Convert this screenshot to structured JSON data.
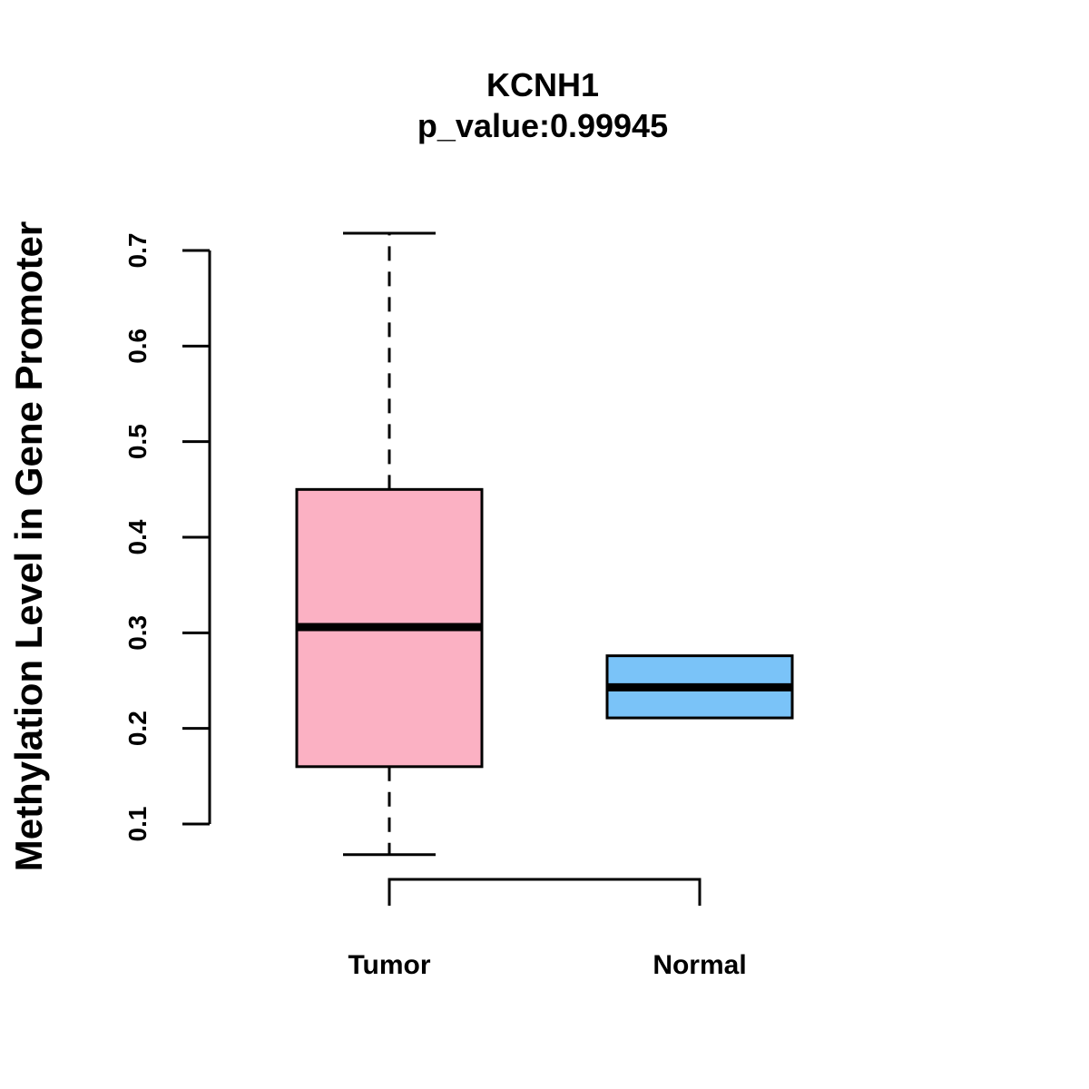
{
  "chart_data": {
    "type": "box",
    "title": "KCNH1",
    "subtitle": "p_value:0.99945",
    "ylabel": "Methylation Level in Gene Promoter",
    "xlabel": "",
    "ylim": [
      0.1,
      0.7
    ],
    "yticks": [
      "0.1",
      "0.2",
      "0.3",
      "0.4",
      "0.5",
      "0.6",
      "0.7"
    ],
    "grid": false,
    "categories": [
      "Tumor",
      "Normal"
    ],
    "boxes": [
      {
        "category": "Tumor",
        "min": 0.068,
        "q1": 0.16,
        "median": 0.306,
        "q3": 0.45,
        "max": 0.718,
        "color": "#FBB1C3"
      },
      {
        "category": "Normal",
        "min": 0.211,
        "q1": 0.211,
        "median": 0.243,
        "q3": 0.276,
        "max": 0.276,
        "color": "#7AC3F8"
      }
    ],
    "significance_bracket": true
  }
}
